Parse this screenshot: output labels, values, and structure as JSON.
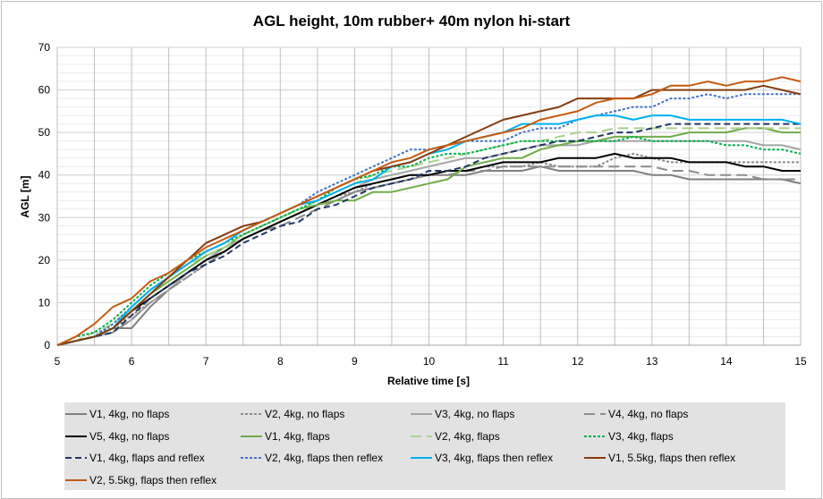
{
  "chart_data": {
    "type": "line",
    "title": "AGL height, 10m rubber+ 40m nylon hi-start",
    "xlabel": "Relative time [s]",
    "ylabel": "AGL [m]",
    "xlim": [
      5,
      15
    ],
    "ylim": [
      0,
      70
    ],
    "xticks": [
      5,
      6,
      7,
      8,
      9,
      10,
      11,
      12,
      13,
      14,
      15
    ],
    "yticks": [
      0,
      10,
      20,
      30,
      40,
      50,
      60,
      70
    ],
    "grid": true,
    "legend_position": "bottom",
    "x_start": 5,
    "x_step": 0.25,
    "series": [
      {
        "name": "V1, 4kg, no flaps",
        "color": "#7f7f7f",
        "dash": "solid",
        "values": [
          0,
          1,
          2,
          4,
          4,
          9,
          13,
          17,
          20,
          23,
          25,
          27,
          29,
          31,
          33,
          34,
          36,
          37,
          38,
          39,
          40,
          40,
          40,
          41,
          41,
          41,
          42,
          41,
          41,
          41,
          41,
          41,
          40,
          40,
          39,
          39,
          39,
          39,
          39,
          39,
          38
        ]
      },
      {
        "name": "V2, 4kg, no flaps",
        "color": "#8c8c8c",
        "dash": "dot",
        "values": [
          0,
          2,
          3,
          4,
          7,
          10,
          13,
          16,
          19,
          22,
          25,
          27,
          29,
          31,
          33,
          35,
          36,
          38,
          39,
          40,
          40,
          41,
          41,
          42,
          42,
          42,
          43,
          42,
          42,
          42,
          44,
          45,
          44,
          43,
          43,
          43,
          43,
          43,
          43,
          43,
          43
        ]
      },
      {
        "name": "V3, 4kg, no flaps",
        "color": "#a5a5a5",
        "dash": "solid",
        "values": [
          0,
          1,
          2,
          3,
          6,
          10,
          13,
          17,
          20,
          23,
          25,
          27,
          29,
          31,
          33,
          35,
          37,
          39,
          40,
          41,
          42,
          43,
          44,
          44,
          45,
          46,
          47,
          47,
          47,
          48,
          48,
          48,
          48,
          48,
          48,
          48,
          48,
          48,
          47,
          47,
          46
        ]
      },
      {
        "name": "V4, 4kg, no flaps",
        "color": "#8c8c8c",
        "dash": "longdash",
        "values": [
          0,
          1,
          2,
          3,
          6,
          10,
          13,
          16,
          19,
          22,
          25,
          27,
          28,
          30,
          32,
          34,
          36,
          37,
          38,
          39,
          40,
          40,
          41,
          41,
          42,
          42,
          42,
          42,
          42,
          42,
          42,
          42,
          42,
          41,
          41,
          40,
          40,
          40,
          39,
          39,
          39
        ]
      },
      {
        "name": "V5, 4kg, no flaps",
        "color": "#000000",
        "dash": "solid",
        "values": [
          0,
          1,
          2,
          4,
          8,
          11,
          14,
          17,
          20,
          22,
          25,
          27,
          29,
          31,
          33,
          35,
          37,
          38,
          39,
          40,
          40,
          41,
          41,
          42,
          43,
          43,
          43,
          44,
          44,
          44,
          45,
          44,
          44,
          44,
          43,
          43,
          43,
          42,
          42,
          41,
          41
        ]
      },
      {
        "name": "V1, 4kg, flaps",
        "color": "#70ad47",
        "dash": "solid",
        "values": [
          0,
          1,
          2,
          4,
          8,
          12,
          15,
          18,
          21,
          23,
          26,
          28,
          30,
          32,
          33,
          34,
          34,
          36,
          36,
          37,
          38,
          39,
          42,
          43,
          44,
          44,
          46,
          47,
          48,
          48,
          49,
          49,
          49,
          49,
          50,
          50,
          50,
          51,
          51,
          50,
          50
        ]
      },
      {
        "name": "V2, 4kg, flaps",
        "color": "#a9d18e",
        "dash": "longdash",
        "values": [
          0,
          1,
          3,
          5,
          9,
          13,
          16,
          19,
          21,
          23,
          26,
          28,
          30,
          32,
          34,
          36,
          38,
          40,
          41,
          42,
          43,
          44,
          45,
          46,
          47,
          48,
          48,
          49,
          50,
          50,
          51,
          51,
          51,
          51,
          51,
          51,
          51,
          51,
          51,
          51,
          51
        ]
      },
      {
        "name": "V3, 4kg, flaps",
        "color": "#00b050",
        "dash": "dot",
        "values": [
          0,
          2,
          3,
          6,
          10,
          14,
          17,
          20,
          22,
          24,
          26,
          28,
          30,
          32,
          34,
          37,
          39,
          40,
          42,
          42,
          44,
          45,
          45,
          46,
          47,
          48,
          48,
          48,
          48,
          48,
          48,
          49,
          48,
          48,
          48,
          48,
          47,
          47,
          46,
          46,
          45
        ]
      },
      {
        "name": "V1, 4kg, flaps and reflex",
        "color": "#203864",
        "dash": "dash",
        "values": [
          0,
          1,
          2,
          3,
          7,
          11,
          14,
          17,
          19,
          21,
          24,
          26,
          28,
          29,
          32,
          33,
          35,
          37,
          38,
          39,
          41,
          41,
          42,
          44,
          45,
          46,
          47,
          48,
          48,
          49,
          50,
          50,
          51,
          52,
          52,
          52,
          52,
          52,
          52,
          52,
          52
        ]
      },
      {
        "name": "V2, 4kg, flaps then reflex",
        "color": "#4472c4",
        "dash": "dot",
        "values": [
          0,
          1,
          2,
          5,
          9,
          13,
          16,
          19,
          22,
          24,
          27,
          29,
          31,
          33,
          36,
          38,
          40,
          42,
          44,
          46,
          46,
          47,
          48,
          48,
          48,
          50,
          51,
          51,
          53,
          54,
          55,
          56,
          56,
          58,
          58,
          59,
          58,
          59,
          59,
          59,
          59
        ]
      },
      {
        "name": "V3, 4kg, flaps then reflex",
        "color": "#00b0f0",
        "dash": "solid",
        "values": [
          0,
          1,
          2,
          4,
          9,
          13,
          16,
          19,
          22,
          24,
          27,
          29,
          31,
          33,
          34,
          36,
          38,
          39,
          42,
          43,
          45,
          46,
          48,
          49,
          50,
          52,
          52,
          52,
          53,
          54,
          54,
          53,
          54,
          54,
          53,
          53,
          53,
          53,
          53,
          53,
          52
        ]
      },
      {
        "name": "V1, 5.5kg, flaps then reflex",
        "color": "#843c0c",
        "dash": "solid",
        "values": [
          0,
          1,
          2,
          4,
          8,
          12,
          16,
          20,
          24,
          26,
          28,
          29,
          31,
          33,
          35,
          37,
          39,
          41,
          42,
          43,
          45,
          47,
          49,
          51,
          53,
          54,
          55,
          56,
          58,
          58,
          58,
          58,
          60,
          60,
          60,
          60,
          60,
          60,
          61,
          60,
          59
        ]
      },
      {
        "name": "V2, 5.5kg, flaps then reflex",
        "color": "#c55a11",
        "dash": "solid",
        "values": [
          0,
          2,
          5,
          9,
          11,
          15,
          17,
          20,
          23,
          25,
          27,
          29,
          31,
          33,
          35,
          37,
          39,
          41,
          43,
          44,
          46,
          47,
          48,
          49,
          50,
          51,
          53,
          54,
          55,
          57,
          58,
          58,
          59,
          61,
          61,
          62,
          61,
          62,
          62,
          63,
          62
        ]
      }
    ]
  }
}
